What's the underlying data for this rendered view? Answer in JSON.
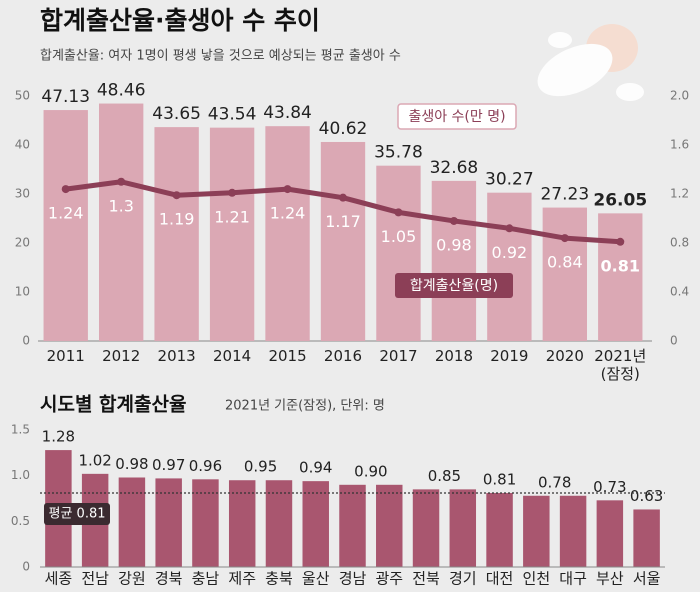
{
  "title": "합계출산율·출생아 수 추이",
  "subtitle": "합계출산율: 여자 1명이 평생 낳을 것으로 예상되는 평균 출생아 수",
  "chart_data": [
    {
      "type": "combo",
      "categories": [
        "2011",
        "2012",
        "2013",
        "2014",
        "2015",
        "2016",
        "2017",
        "2018",
        "2019",
        "2020",
        "2021년\n(잠정)"
      ],
      "series": [
        {
          "name": "출생아 수(만 명)",
          "type": "bar",
          "color": "#dba8b4",
          "values": [
            47.13,
            48.46,
            43.65,
            43.54,
            43.84,
            40.62,
            35.78,
            32.68,
            30.27,
            27.23,
            26.05
          ]
        },
        {
          "name": "합계출산율(명)",
          "type": "line",
          "axis": "y2",
          "color": "#8c3f57",
          "values": [
            1.24,
            1.3,
            1.19,
            1.21,
            1.24,
            1.17,
            1.05,
            0.98,
            0.92,
            0.84,
            0.81
          ]
        }
      ],
      "ylim": [
        0,
        50
      ],
      "yticks": [
        0,
        10,
        20,
        30,
        40,
        50
      ],
      "y2lim": [
        0,
        2
      ],
      "y2ticks": [
        0,
        0.4,
        0.8,
        1.2,
        1.6,
        {
          "value": 2,
          "label": "2.0"
        }
      ],
      "grid": false
    },
    {
      "type": "bar",
      "title": "시도별 합계출산율",
      "note": "2021년 기준(잠정), 단위: 명",
      "categories": [
        "세종",
        "전남",
        "강원",
        "경북",
        "충남",
        "제주",
        "충북",
        "울산",
        "경남",
        "광주",
        "전북",
        "경기",
        "대전",
        "인천",
        "대구",
        "부산",
        "서울"
      ],
      "values": [
        1.28,
        1.02,
        0.98,
        0.97,
        0.96,
        0.95,
        0.95,
        0.94,
        0.9,
        0.9,
        0.85,
        0.85,
        0.81,
        0.78,
        0.78,
        0.73,
        0.63
      ],
      "value_labels": [
        "1.28",
        "1.02",
        "0.98",
        "0.97",
        "0.96",
        "0.95",
        null,
        "0.94",
        "0.90",
        null,
        "0.85",
        null,
        "0.81",
        "0.78",
        null,
        "0.73",
        "0.63"
      ],
      "color": "#a9566f",
      "ylim": [
        0,
        1.5
      ],
      "yticks": [
        0,
        0.5,
        {
          "value": 1,
          "label": "1.0"
        },
        1.5
      ],
      "reference_line": {
        "value": 0.81,
        "label": "평균 0.81"
      },
      "grid": false
    }
  ]
}
